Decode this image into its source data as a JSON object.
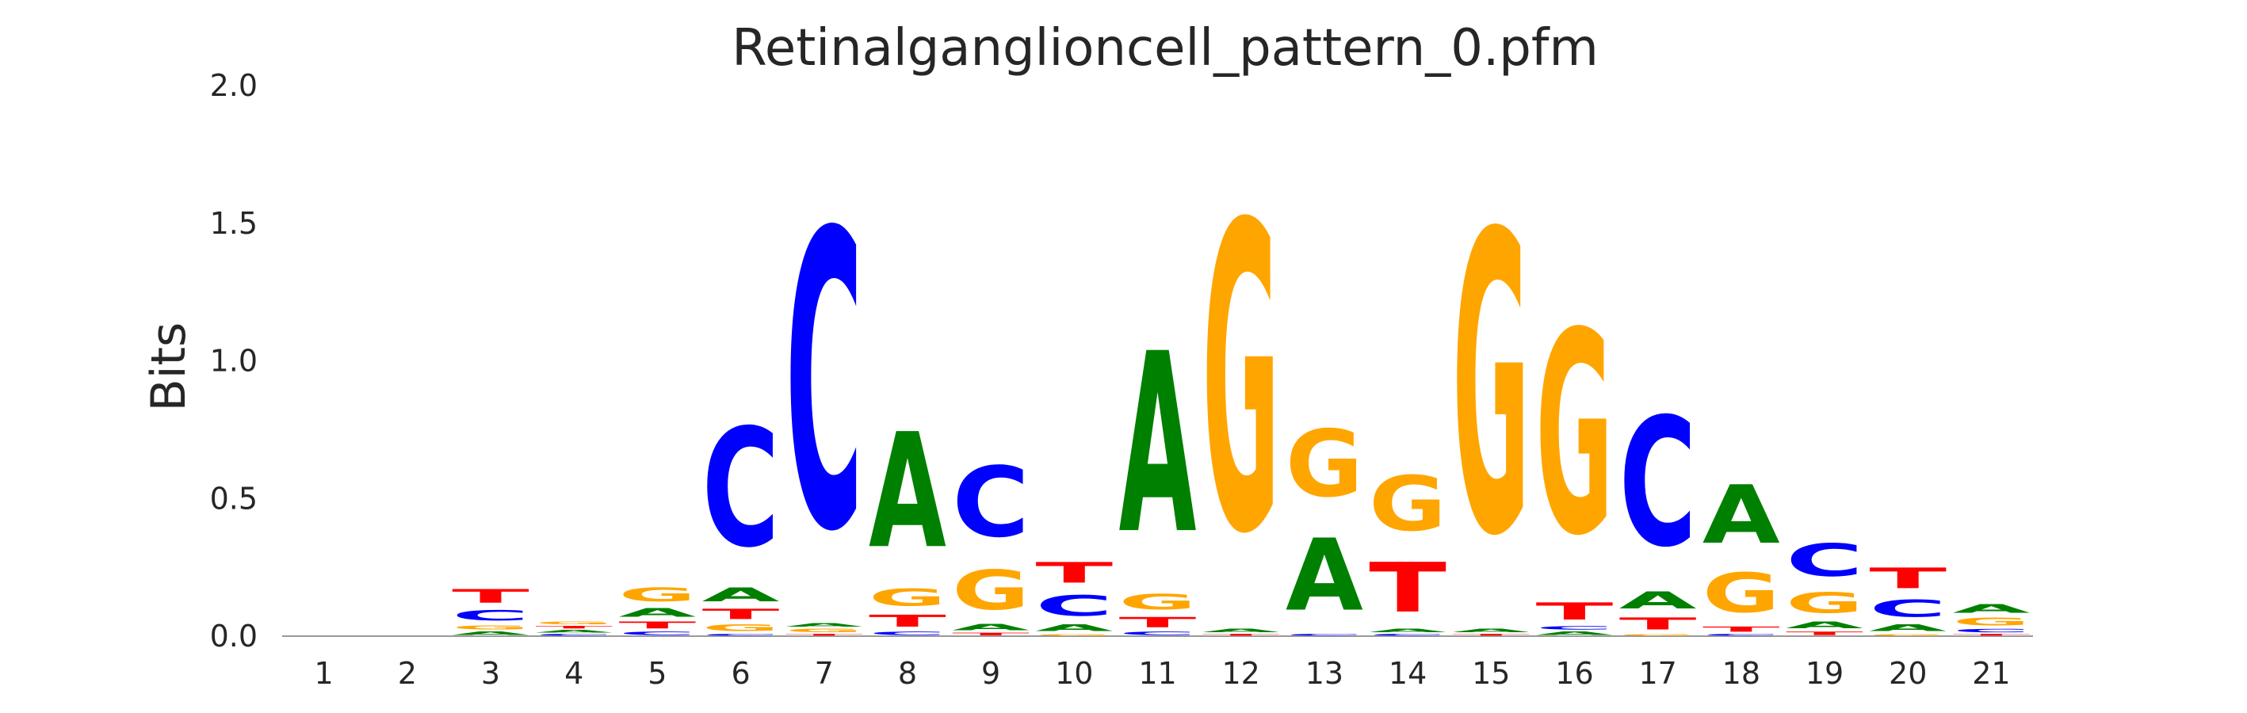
{
  "chart_data": {
    "type": "sequence-logo",
    "title": "Retinalganglioncell_pattern_0.pfm",
    "xlabel": "",
    "ylabel": "Bits",
    "ylim": [
      0,
      2.0
    ],
    "yticks": [
      0.0,
      0.5,
      1.0,
      1.5,
      2.0
    ],
    "ytick_labels": [
      "0.0",
      "0.5",
      "1.0",
      "1.5",
      "2.0"
    ],
    "positions": [
      "1",
      "2",
      "3",
      "4",
      "5",
      "6",
      "7",
      "8",
      "9",
      "10",
      "11",
      "12",
      "13",
      "14",
      "15",
      "16",
      "17",
      "18",
      "19",
      "20",
      "21"
    ],
    "colors": {
      "A": "#008000",
      "C": "#0000ff",
      "G": "#ffa500",
      "T": "#ff0000"
    },
    "grid": false,
    "legend": "none",
    "stacks": [
      [],
      [],
      [
        [
          "A",
          0.02
        ],
        [
          "G",
          0.025
        ],
        [
          "C",
          0.06
        ],
        [
          "T",
          0.08
        ]
      ],
      [
        [
          "C",
          0.01
        ],
        [
          "A",
          0.015
        ],
        [
          "T",
          0.015
        ],
        [
          "G",
          0.015
        ]
      ],
      [
        [
          "C",
          0.02
        ],
        [
          "T",
          0.04
        ],
        [
          "A",
          0.05
        ],
        [
          "G",
          0.08
        ]
      ],
      [
        [
          "C",
          0.01
        ],
        [
          "G",
          0.04
        ],
        [
          "T",
          0.06
        ],
        [
          "A",
          0.08
        ],
        [
          "C",
          0.69
        ]
      ],
      [
        [
          "T",
          0.01
        ],
        [
          "G",
          0.02
        ],
        [
          "A",
          0.02
        ],
        [
          "C",
          1.73
        ]
      ],
      [
        [
          "C",
          0.02
        ],
        [
          "T",
          0.07
        ],
        [
          "G",
          0.1
        ],
        [
          "A",
          0.67
        ]
      ],
      [
        [
          "T",
          0.015
        ],
        [
          "A",
          0.035
        ],
        [
          "G",
          0.23
        ],
        [
          "C",
          0.41
        ]
      ],
      [
        [
          "G",
          0.01
        ],
        [
          "A",
          0.04
        ],
        [
          "C",
          0.12
        ],
        [
          "T",
          0.12
        ]
      ],
      [
        [
          "C",
          0.02
        ],
        [
          "T",
          0.06
        ],
        [
          "G",
          0.09
        ],
        [
          "A",
          1.05
        ]
      ],
      [
        [
          "T",
          0.01
        ],
        [
          "A",
          0.02
        ],
        [
          "G",
          1.79
        ]
      ],
      [
        [
          "C",
          0.01
        ],
        [
          "A",
          0.42
        ],
        [
          "G",
          0.39
        ]
      ],
      [
        [
          "C",
          0.01
        ],
        [
          "A",
          0.02
        ],
        [
          "T",
          0.29
        ],
        [
          "G",
          0.32
        ]
      ],
      [
        [
          "T",
          0.01
        ],
        [
          "A",
          0.02
        ],
        [
          "G",
          1.75
        ]
      ],
      [
        [
          "A",
          0.02
        ],
        [
          "C",
          0.02
        ],
        [
          "T",
          0.1
        ],
        [
          "G",
          1.18
        ]
      ],
      [
        [
          "G",
          0.01
        ],
        [
          "T",
          0.07
        ],
        [
          "A",
          0.1
        ],
        [
          "C",
          0.75
        ]
      ],
      [
        [
          "C",
          0.01
        ],
        [
          "T",
          0.03
        ],
        [
          "G",
          0.23
        ],
        [
          "A",
          0.34
        ]
      ],
      [
        [
          "T",
          0.02
        ],
        [
          "A",
          0.04
        ],
        [
          "G",
          0.12
        ],
        [
          "C",
          0.19
        ]
      ],
      [
        [
          "G",
          0.01
        ],
        [
          "A",
          0.04
        ],
        [
          "C",
          0.1
        ],
        [
          "T",
          0.12
        ]
      ],
      [
        [
          "T",
          0.01
        ],
        [
          "C",
          0.02
        ],
        [
          "G",
          0.045
        ],
        [
          "A",
          0.05
        ]
      ]
    ]
  }
}
